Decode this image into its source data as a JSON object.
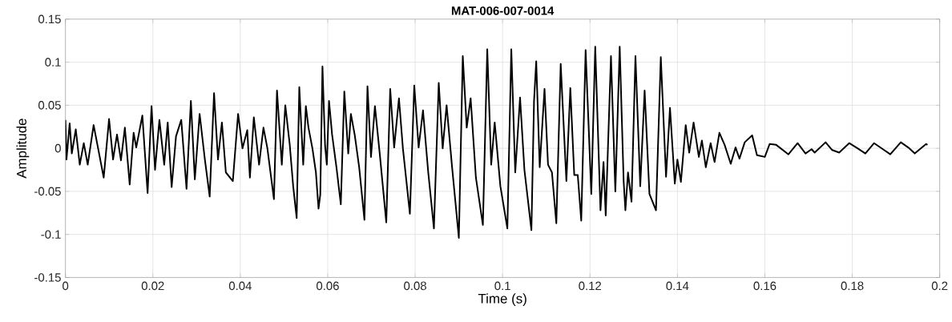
{
  "chart_data": {
    "type": "line",
    "title": "MAT-006-007-0014",
    "xlabel": "Time (s)",
    "ylabel": "Amplitude",
    "xlim": [
      0,
      0.2
    ],
    "ylim": [
      -0.15,
      0.15
    ],
    "xticks": [
      0,
      0.02,
      0.04,
      0.06,
      0.08,
      0.1,
      0.12,
      0.14,
      0.16,
      0.18,
      0.2
    ],
    "yticks": [
      -0.15,
      -0.1,
      -0.05,
      0,
      0.05,
      0.1,
      0.15
    ],
    "grid": true,
    "line_style": "solid",
    "marker": "none",
    "series": [
      {
        "color": "#000000",
        "x": [
          0,
          0.00024,
          0.00097,
          0.00146,
          0.00237,
          0.00328,
          0.0042,
          0.0051,
          0.00645,
          0.00876,
          0.00998,
          0.0109,
          0.0118,
          0.0127,
          0.0136,
          0.0147,
          0.0156,
          0.0162,
          0.0176,
          0.0188,
          0.0197,
          0.0205,
          0.0215,
          0.0226,
          0.0234,
          0.0243,
          0.0253,
          0.0265,
          0.0277,
          0.0287,
          0.0296,
          0.0307,
          0.0319,
          0.033,
          0.034,
          0.0349,
          0.0358,
          0.0367,
          0.0383,
          0.0395,
          0.0405,
          0.0416,
          0.0422,
          0.0431,
          0.0443,
          0.0453,
          0.0462,
          0.0477,
          0.0484,
          0.0495,
          0.0503,
          0.0513,
          0.0521,
          0.0529,
          0.0535,
          0.0544,
          0.055,
          0.0556,
          0.0565,
          0.0573,
          0.0579,
          0.0583,
          0.0588,
          0.0594,
          0.0598,
          0.0603,
          0.061,
          0.062,
          0.063,
          0.0638,
          0.0647,
          0.0653,
          0.0662,
          0.0672,
          0.0684,
          0.0691,
          0.0699,
          0.0708,
          0.0719,
          0.0734,
          0.0743,
          0.0752,
          0.0763,
          0.0772,
          0.0788,
          0.0798,
          0.0808,
          0.0818,
          0.083,
          0.0843,
          0.0854,
          0.0863,
          0.0872,
          0.0884,
          0.09,
          0.0909,
          0.0918,
          0.0927,
          0.0939,
          0.0955,
          0.0965,
          0.0974,
          0.0982,
          0.0995,
          0.1011,
          0.102,
          0.1029,
          0.104,
          0.105,
          0.1066,
          0.1072,
          0.1077,
          0.1085,
          0.1096,
          0.1104,
          0.1113,
          0.1123,
          0.1133,
          0.1146,
          0.1155,
          0.1164,
          0.1172,
          0.118,
          0.119,
          0.1203,
          0.1212,
          0.1224,
          0.1231,
          0.1236,
          0.1248,
          0.1258,
          0.1268,
          0.1277,
          0.1281,
          0.1287,
          0.1295,
          0.1304,
          0.1315,
          0.1325,
          0.1336,
          0.1351,
          0.1362,
          0.1374,
          0.1383,
          0.1394,
          0.14,
          0.1408,
          0.1419,
          0.1427,
          0.1437,
          0.1449,
          0.1456,
          0.1465,
          0.1476,
          0.1485,
          0.1496,
          0.1508,
          0.1522,
          0.1533,
          0.1542,
          0.1554,
          0.1571,
          0.1582,
          0.16,
          0.1611,
          0.1626,
          0.1654,
          0.1675,
          0.1693,
          0.1707,
          0.1714,
          0.1739,
          0.1754,
          0.177,
          0.1793,
          0.1812,
          0.183,
          0.185,
          0.187,
          0.1887,
          0.1911,
          0.1928,
          0.1943,
          0.1969,
          0.1972
        ],
        "values": [
          0.033,
          -0.013,
          0.029,
          -0.006,
          0.022,
          -0.019,
          0.006,
          -0.019,
          0.027,
          -0.034,
          0.034,
          -0.013,
          0.016,
          -0.014,
          0.024,
          -0.042,
          0.018,
          0.001,
          0.038,
          -0.052,
          0.049,
          -0.025,
          0.033,
          -0.019,
          0.03,
          -0.045,
          0.014,
          0.033,
          -0.047,
          0.055,
          -0.036,
          0.04,
          -0.013,
          -0.056,
          0.064,
          -0.013,
          0.03,
          -0.028,
          -0.038,
          0.04,
          0,
          0.021,
          -0.034,
          0.036,
          -0.019,
          0.024,
          0,
          -0.059,
          0.067,
          -0.019,
          0.05,
          0.005,
          -0.044,
          -0.081,
          0.071,
          -0.019,
          0.049,
          0.024,
          0,
          -0.028,
          -0.07,
          -0.054,
          0.095,
          0.003,
          -0.019,
          0.055,
          0.016,
          -0.022,
          -0.065,
          0.066,
          -0.006,
          0.04,
          0.015,
          -0.022,
          -0.083,
          0.072,
          -0.01,
          0.049,
          -0.006,
          -0.086,
          0.069,
          0.001,
          0.058,
          0,
          -0.076,
          0.073,
          0.001,
          0.044,
          -0.028,
          -0.093,
          0.076,
          0,
          0.05,
          -0.019,
          -0.104,
          0.107,
          0.024,
          0.058,
          -0.034,
          -0.089,
          0.115,
          -0.019,
          0.03,
          -0.044,
          -0.093,
          0.115,
          -0.028,
          0.059,
          -0.025,
          -0.095,
          0.055,
          0.101,
          -0.022,
          0.069,
          -0.019,
          -0.028,
          -0.087,
          0.098,
          -0.038,
          0.07,
          -0.031,
          -0.031,
          -0.084,
          0.114,
          -0.053,
          0.118,
          -0.072,
          -0.016,
          -0.078,
          0.107,
          -0.05,
          0.118,
          -0.038,
          -0.072,
          -0.028,
          -0.062,
          0.107,
          -0.044,
          0.067,
          -0.053,
          -0.072,
          0.106,
          -0.033,
          0.047,
          -0.041,
          -0.013,
          -0.039,
          0.027,
          -0.005,
          0.03,
          -0.01,
          0.009,
          -0.022,
          0.006,
          -0.016,
          0.018,
          0.004,
          -0.018,
          0.001,
          -0.012,
          0.007,
          0.015,
          -0.008,
          -0.01,
          0.005,
          0.004,
          -0.007,
          0.006,
          -0.006,
          -0.001,
          -0.005,
          0.007,
          -0.002,
          -0.005,
          0.006,
          0,
          -0.006,
          0.006,
          -0.001,
          -0.007,
          0.007,
          0.001,
          -0.006,
          0.005,
          0.004
        ]
      }
    ]
  }
}
